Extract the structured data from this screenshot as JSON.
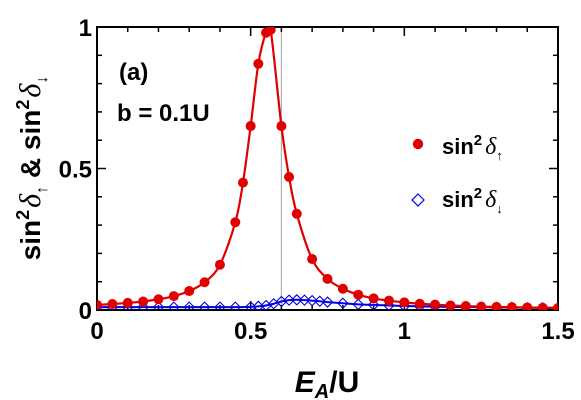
{
  "chart_data": {
    "type": "scatter",
    "panel_label": "(a)",
    "annotation": "b = 0.1U",
    "xlabel": {
      "main": "E",
      "subscript": "A",
      "suffix": "/U"
    },
    "ylabel": {
      "parts": [
        "sin",
        "2",
        "δ",
        "↑",
        " & ",
        "sin",
        "2",
        "δ",
        "↓"
      ]
    },
    "xlim": [
      0,
      1.5
    ],
    "ylim": [
      0,
      1
    ],
    "xticks": [
      0,
      0.5,
      1,
      1.5
    ],
    "xtick_labels": [
      "0",
      "0.5",
      "1",
      "1.5"
    ],
    "yticks": [
      0,
      0.5,
      1
    ],
    "ytick_labels": [
      "0",
      "0.5",
      "1"
    ],
    "vertical_line_x": 0.6,
    "colors": {
      "up": "#e00000",
      "down": "#0000e0",
      "guide": "#b0b0b0"
    },
    "series": [
      {
        "name": "sin²δ↑",
        "legend": {
          "base": "sin",
          "sup": "2",
          "sym": "δ",
          "sub": "↑"
        },
        "marker": "filled-circle",
        "x": [
          0.0,
          0.05,
          0.1,
          0.15,
          0.2,
          0.25,
          0.3,
          0.35,
          0.4,
          0.45,
          0.475,
          0.5,
          0.525,
          0.55,
          0.565,
          0.6,
          0.625,
          0.65,
          0.7,
          0.75,
          0.8,
          0.85,
          0.9,
          0.95,
          1.0,
          1.05,
          1.1,
          1.15,
          1.2,
          1.25,
          1.3,
          1.35,
          1.4,
          1.45,
          1.5
        ],
        "y": [
          0.018,
          0.021,
          0.025,
          0.03,
          0.038,
          0.049,
          0.067,
          0.098,
          0.16,
          0.31,
          0.45,
          0.65,
          0.87,
          0.98,
          0.99,
          0.65,
          0.47,
          0.34,
          0.18,
          0.11,
          0.075,
          0.054,
          0.041,
          0.033,
          0.027,
          0.022,
          0.019,
          0.016,
          0.014,
          0.012,
          0.011,
          0.01,
          0.009,
          0.008,
          0.007
        ]
      },
      {
        "name": "sin²δ↓",
        "legend": {
          "base": "sin",
          "sup": "2",
          "sym": "δ",
          "sub": "↓"
        },
        "marker": "open-diamond",
        "x": [
          0.0,
          0.05,
          0.1,
          0.15,
          0.2,
          0.25,
          0.3,
          0.35,
          0.4,
          0.45,
          0.5,
          0.525,
          0.55,
          0.575,
          0.6,
          0.625,
          0.65,
          0.675,
          0.7,
          0.725,
          0.75,
          0.8,
          0.85,
          0.9,
          0.95,
          1.0,
          1.05,
          1.1,
          1.15,
          1.2,
          1.25,
          1.3,
          1.35,
          1.4,
          1.45,
          1.5
        ],
        "y": [
          0.01,
          0.01,
          0.01,
          0.01,
          0.01,
          0.01,
          0.01,
          0.01,
          0.01,
          0.01,
          0.011,
          0.013,
          0.016,
          0.022,
          0.03,
          0.035,
          0.036,
          0.035,
          0.033,
          0.031,
          0.028,
          0.024,
          0.02,
          0.018,
          0.016,
          0.014,
          0.013,
          0.012,
          0.011,
          0.01,
          0.01,
          0.009,
          0.009,
          0.008,
          0.008,
          0.008
        ]
      }
    ]
  }
}
